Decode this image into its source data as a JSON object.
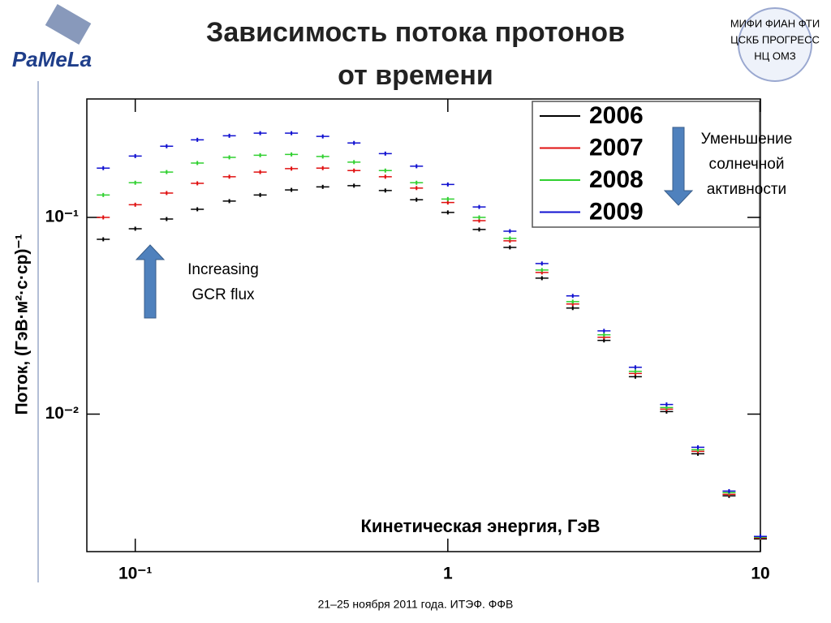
{
  "chart_data": {
    "type": "scatter",
    "title_lines": [
      "Зависимость потока протонов",
      "от времени"
    ],
    "x_label": "Кинетическая энергия, ГэВ",
    "y_label": "Поток, (ГэВ·м²·с·ср)⁻¹",
    "log_x": true,
    "log_y": true,
    "xlim": [
      0.07,
      10
    ],
    "ylim": [
      0.002,
      0.4
    ],
    "xticks": [
      {
        "value": 0.1,
        "label": "10⁻¹"
      },
      1,
      10
    ],
    "yticks": [
      {
        "value": 0.1,
        "label": "10⁻¹"
      },
      {
        "value": 0.01,
        "label": "10⁻²"
      }
    ],
    "legend": "upper right",
    "x": [
      0.079,
      0.1,
      0.126,
      0.158,
      0.2,
      0.251,
      0.316,
      0.398,
      0.501,
      0.631,
      0.794,
      1,
      1.26,
      1.58,
      2,
      2.51,
      3.16,
      3.98,
      5.01,
      6.31,
      7.94,
      10
    ],
    "series": [
      {
        "name": "2006",
        "color": "#000000",
        "values": [
          0.0774,
          0.0876,
          0.0981,
          0.11,
          0.121,
          0.13,
          0.138,
          0.143,
          0.145,
          0.137,
          0.123,
          0.106,
          0.0868,
          0.0704,
          0.0491,
          0.0346,
          0.0237,
          0.0155,
          0.0103,
          0.00629,
          0.00384,
          0.00232
        ]
      },
      {
        "name": "2007",
        "color": "#e01010",
        "values": [
          0.1,
          0.116,
          0.133,
          0.149,
          0.161,
          0.17,
          0.177,
          0.178,
          0.173,
          0.161,
          0.141,
          0.119,
          0.0963,
          0.076,
          0.0525,
          0.0363,
          0.0246,
          0.0161,
          0.0106,
          0.00647,
          0.00391,
          0.00235
        ]
      },
      {
        "name": "2008",
        "color": "#30d030",
        "values": [
          0.13,
          0.15,
          0.17,
          0.189,
          0.202,
          0.207,
          0.209,
          0.204,
          0.191,
          0.173,
          0.15,
          0.124,
          0.1,
          0.0782,
          0.054,
          0.0373,
          0.0253,
          0.0165,
          0.0108,
          0.00659,
          0.00399,
          0.00237
        ]
      },
      {
        "name": "2009",
        "color": "#1010d0",
        "values": [
          0.178,
          0.205,
          0.23,
          0.248,
          0.26,
          0.268,
          0.268,
          0.258,
          0.239,
          0.211,
          0.182,
          0.147,
          0.113,
          0.0851,
          0.0583,
          0.0399,
          0.0265,
          0.0173,
          0.0112,
          0.00678,
          0.00406,
          0.00239
        ]
      }
    ],
    "annotations": [
      {
        "lines": [
          "Уменьшение",
          "солнечной",
          "активности"
        ]
      },
      {
        "lines": [
          "Increasing",
          "GCR flux"
        ]
      }
    ]
  },
  "logos": {
    "left": "PaMeLa",
    "right_lines": [
      "МИФИ  ФИАН  ФТИ",
      "ЦСКБ  ПРОГРЕСС",
      "НЦ  ОМЗ"
    ]
  },
  "footer": "21–25 ноября 2011 года. ИТЭФ. ФФВ"
}
